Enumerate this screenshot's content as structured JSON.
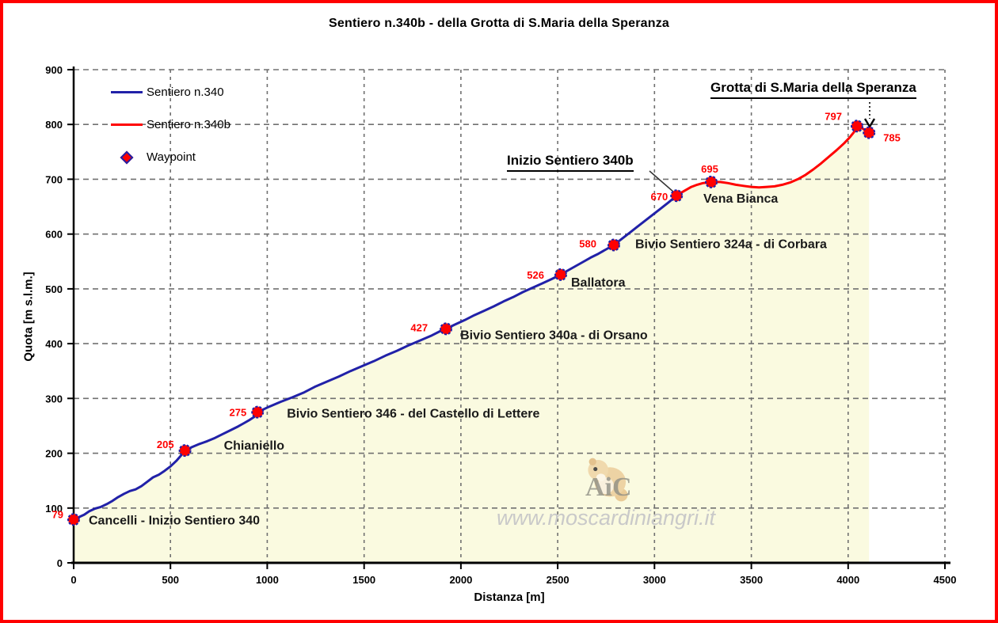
{
  "frame": {
    "border_color": "#ff0000",
    "background": "#ffffff"
  },
  "title": "Sentiero n.340b - della Grotta di S.Maria della Speranza",
  "legend": {
    "items": [
      {
        "label": "Sentiero n.340",
        "type": "line",
        "color": "#2121a8"
      },
      {
        "label": "Sentiero n.340b",
        "type": "line",
        "color": "#ff0000"
      },
      {
        "label": "Waypoint",
        "type": "marker",
        "fill": "#ff0000",
        "stroke": "#2121a8"
      }
    ]
  },
  "watermark": {
    "logo_text": "AiC",
    "url_text": "www.moscardiniangri.it"
  },
  "chart_data": {
    "type": "line",
    "title": "Sentiero n.340b - della Grotta di S.Maria della Speranza",
    "xlabel": "Distanza [m]",
    "ylabel": "Quota [m s.l.m.]",
    "xlim": [
      0,
      4500
    ],
    "ylim": [
      0,
      900
    ],
    "xticks": [
      0,
      500,
      1000,
      1500,
      2000,
      2500,
      3000,
      3500,
      4000,
      4500
    ],
    "yticks": [
      0,
      100,
      200,
      300,
      400,
      500,
      600,
      700,
      800,
      900
    ],
    "grid": "dashed",
    "grid_color": "#707070",
    "area_fill": "#fafae0",
    "axis_color": "#000000",
    "series": [
      {
        "name": "Sentiero n.340",
        "color": "#2121a8",
        "points": [
          [
            0,
            79
          ],
          [
            25,
            83
          ],
          [
            55,
            88
          ],
          [
            80,
            94
          ],
          [
            110,
            99
          ],
          [
            140,
            102
          ],
          [
            170,
            107
          ],
          [
            200,
            113
          ],
          [
            230,
            120
          ],
          [
            260,
            126
          ],
          [
            290,
            131
          ],
          [
            320,
            134
          ],
          [
            350,
            140
          ],
          [
            380,
            148
          ],
          [
            410,
            156
          ],
          [
            440,
            161
          ],
          [
            470,
            168
          ],
          [
            500,
            176
          ],
          [
            530,
            186
          ],
          [
            555,
            196
          ],
          [
            575,
            205
          ],
          [
            610,
            211
          ],
          [
            650,
            217
          ],
          [
            690,
            222
          ],
          [
            730,
            228
          ],
          [
            770,
            235
          ],
          [
            810,
            242
          ],
          [
            850,
            249
          ],
          [
            880,
            255
          ],
          [
            910,
            261
          ],
          [
            935,
            267
          ],
          [
            950,
            275
          ],
          [
            1010,
            285
          ],
          [
            1070,
            294
          ],
          [
            1130,
            302
          ],
          [
            1190,
            311
          ],
          [
            1250,
            322
          ],
          [
            1310,
            331
          ],
          [
            1370,
            340
          ],
          [
            1430,
            350
          ],
          [
            1490,
            359
          ],
          [
            1550,
            368
          ],
          [
            1610,
            378
          ],
          [
            1670,
            387
          ],
          [
            1730,
            397
          ],
          [
            1790,
            406
          ],
          [
            1850,
            415
          ],
          [
            1900,
            424
          ],
          [
            1923,
            427
          ],
          [
            1970,
            435
          ],
          [
            2020,
            443
          ],
          [
            2070,
            452
          ],
          [
            2120,
            460
          ],
          [
            2170,
            468
          ],
          [
            2220,
            477
          ],
          [
            2270,
            485
          ],
          [
            2320,
            494
          ],
          [
            2370,
            502
          ],
          [
            2420,
            510
          ],
          [
            2470,
            518
          ],
          [
            2516,
            526
          ],
          [
            2550,
            533
          ],
          [
            2590,
            541
          ],
          [
            2630,
            549
          ],
          [
            2670,
            557
          ],
          [
            2710,
            564
          ],
          [
            2750,
            572
          ],
          [
            2790,
            580
          ],
          [
            2830,
            591
          ],
          [
            2870,
            602
          ],
          [
            2910,
            613
          ],
          [
            2950,
            624
          ],
          [
            2990,
            635
          ],
          [
            3030,
            646
          ],
          [
            3070,
            657
          ],
          [
            3114,
            670
          ]
        ]
      },
      {
        "name": "Sentiero n.340b",
        "color": "#ff0000",
        "points": [
          [
            3114,
            670
          ],
          [
            3140,
            676
          ],
          [
            3165,
            681
          ],
          [
            3190,
            686
          ],
          [
            3220,
            690
          ],
          [
            3250,
            693
          ],
          [
            3293,
            695
          ],
          [
            3340,
            695
          ],
          [
            3380,
            693
          ],
          [
            3420,
            690
          ],
          [
            3460,
            688
          ],
          [
            3500,
            686
          ],
          [
            3540,
            685
          ],
          [
            3580,
            686
          ],
          [
            3620,
            687
          ],
          [
            3660,
            690
          ],
          [
            3700,
            694
          ],
          [
            3740,
            700
          ],
          [
            3780,
            708
          ],
          [
            3820,
            718
          ],
          [
            3860,
            729
          ],
          [
            3900,
            741
          ],
          [
            3940,
            753
          ],
          [
            3980,
            766
          ],
          [
            4010,
            777
          ],
          [
            4030,
            786
          ],
          [
            4046,
            797
          ],
          [
            4065,
            795
          ],
          [
            4085,
            790
          ],
          [
            4108,
            785
          ]
        ]
      }
    ],
    "waypoints": [
      {
        "d": 0,
        "elev": 79,
        "value": "79",
        "name": "Cancelli - Inizio Sentiero 340",
        "va": "end",
        "vdx": -13,
        "vdy": -2,
        "ndx": 19,
        "ndy": 6
      },
      {
        "d": 575,
        "elev": 205,
        "value": "205",
        "name": "Chianiello",
        "va": "end",
        "vdx": -14,
        "vdy": -3,
        "ndx": 49,
        "ndy": -1
      },
      {
        "d": 950,
        "elev": 275,
        "value": "275",
        "name": "Bivio Sentiero 346 - del Castello di Lettere",
        "va": "end",
        "vdx": -14,
        "vdy": 5,
        "ndx": 37,
        "ndy": 7
      },
      {
        "d": 1923,
        "elev": 427,
        "value": "427",
        "name": "Bivio Sentiero 340a - di Orsano",
        "va": "end",
        "vdx": -23,
        "vdy": 3,
        "ndx": 18,
        "ndy": 13
      },
      {
        "d": 2516,
        "elev": 526,
        "value": "526",
        "name": "Ballatora",
        "va": "end",
        "vdx": -21,
        "vdy": 5,
        "ndx": 13,
        "ndy": 15
      },
      {
        "d": 2790,
        "elev": 580,
        "value": "580",
        "name": "Bivio Sentiero 324a - di Corbara",
        "va": "end",
        "vdx": -22,
        "vdy": 3,
        "ndx": 27,
        "ndy": 4
      },
      {
        "d": 3114,
        "elev": 670,
        "value": "670",
        "name": "",
        "va": "end",
        "vdx": -11,
        "vdy": 6,
        "ndx": 0,
        "ndy": 0
      },
      {
        "d": 3293,
        "elev": 695,
        "value": "695",
        "name": "Vena Bianca",
        "va": "middle",
        "vdx": -2,
        "vdy": -12,
        "ndx": -10,
        "ndy": 26
      },
      {
        "d": 4046,
        "elev": 797,
        "value": "797",
        "name": "",
        "va": "end",
        "vdx": -19,
        "vdy": -8,
        "ndx": 0,
        "ndy": 0
      },
      {
        "d": 4108,
        "elev": 785,
        "value": "785",
        "name": "",
        "va": "start",
        "vdx": 18,
        "vdy": 11,
        "ndx": 0,
        "ndy": 0
      }
    ],
    "annotations": [
      {
        "text": "Inizio Sentiero 340b",
        "leader_line": [
          820,
          216,
          851,
          243
        ]
      },
      {
        "text": "Grotta di S.Maria della Speranza",
        "arrow_x": 1098,
        "arrow_y1": 129,
        "arrow_y2": 150,
        "arrow_tip": 160
      }
    ],
    "marker_style": {
      "fill": "#ff0000",
      "stroke": "#2121a8"
    }
  }
}
